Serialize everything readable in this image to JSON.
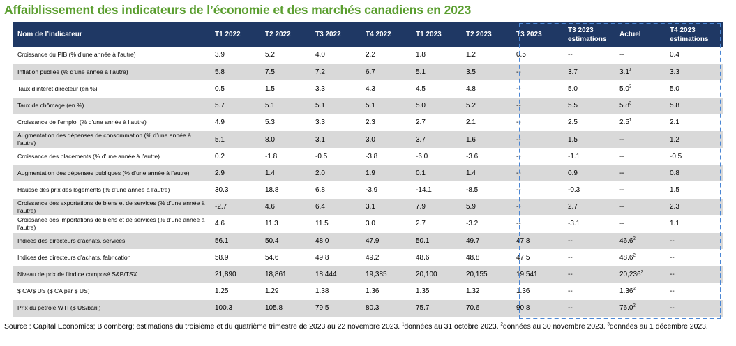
{
  "title": "Affaiblissement des indicateurs de l’économie et des marchés canadiens en 2023",
  "columns": [
    "Nom de l’indicateur",
    "T1 2022",
    "T2 2022",
    "T3 2022",
    "T4 2022",
    "T1 2023",
    "T2 2023",
    "T3 2023",
    "T3 2023 estimations",
    "Actuel",
    "T4 2023 estimations"
  ],
  "rows": [
    {
      "name": "Croissance du PIB (% d’une année à l’autre)",
      "values": [
        "3.9",
        "5.2",
        "4.0",
        "2.2",
        "1.8",
        "1.2",
        "0.5",
        "--",
        "--",
        "0.4"
      ],
      "actuel_note": ""
    },
    {
      "name": "Inflation publiée (% d’une année à l’autre)",
      "values": [
        "5.8",
        "7.5",
        "7.2",
        "6.7",
        "5.1",
        "3.5",
        "--",
        "3.7",
        "3.1",
        "3.3"
      ],
      "actuel_note": "1"
    },
    {
      "name": "Taux d’intérêt directeur (en %)",
      "values": [
        "0.5",
        "1.5",
        "3.3",
        "4.3",
        "4.5",
        "4.8",
        "--",
        "5.0",
        "5.0",
        "5.0"
      ],
      "actuel_note": "2"
    },
    {
      "name": "Taux de chômage (en %)",
      "values": [
        "5.7",
        "5.1",
        "5.1",
        "5.1",
        "5.0",
        "5.2",
        "--",
        "5.5",
        "5.8",
        "5.8"
      ],
      "actuel_note": "3"
    },
    {
      "name": "Croissance de l’emploi (% d’une année à l’autre)",
      "values": [
        "4.9",
        "5.3",
        "3.3",
        "2.3",
        "2.7",
        "2.1",
        "--",
        "2.5",
        "2.5",
        "2.1"
      ],
      "actuel_note": "1"
    },
    {
      "name": "Augmentation des dépenses de consommation (% d’une année à l’autre)",
      "values": [
        "5.1",
        "8.0",
        "3.1",
        "3.0",
        "3.7",
        "1.6",
        "--",
        "1.5",
        "--",
        "1.2"
      ],
      "actuel_note": ""
    },
    {
      "name": "Croissance des placements (% d’une année à l’autre)",
      "values": [
        "0.2",
        "-1.8",
        "-0.5",
        "-3.8",
        "-6.0",
        "-3.6",
        "--",
        "-1.1",
        "--",
        "-0.5"
      ],
      "actuel_note": ""
    },
    {
      "name": "Augmentation des dépenses publiques (% d’une année à l’autre)",
      "values": [
        "2.9",
        "1.4",
        "2.0",
        "1.9",
        "0.1",
        "1.4",
        "--",
        "0.9",
        "--",
        "0.8"
      ],
      "actuel_note": ""
    },
    {
      "name": "Hausse des prix des logements (% d’une année à l’autre)",
      "values": [
        "30.3",
        "18.8",
        "6.8",
        "-3.9",
        "-14.1",
        "-8.5",
        "--",
        "-0.3",
        "--",
        "1.5"
      ],
      "actuel_note": ""
    },
    {
      "name": "Croissance des exportations de biens et de services (% d’une année à l’autre)",
      "values": [
        "-2.7",
        "4.6",
        "6.4",
        "3.1",
        "7.9",
        "5.9",
        "--",
        "2.7",
        "--",
        "2.3"
      ],
      "actuel_note": ""
    },
    {
      "name": "Croissance des importations de biens et de services (% d’une année à l’autre)",
      "values": [
        "4.6",
        "11.3",
        "11.5",
        "3.0",
        "2.7",
        "-3.2",
        "--",
        "-3.1",
        "--",
        "1.1"
      ],
      "actuel_note": ""
    },
    {
      "name": "Indices des directeurs d’achats, services",
      "values": [
        "56.1",
        "50.4",
        "48.0",
        "47.9",
        "50.1",
        "49.7",
        "47.8",
        "--",
        "46.6",
        "--"
      ],
      "actuel_note": "2"
    },
    {
      "name": "Indices des directeurs d’achats, fabrication",
      "values": [
        "58.9",
        "54.6",
        "49.8",
        "49.2",
        "48.6",
        "48.8",
        "47.5",
        "--",
        "48.6",
        "--"
      ],
      "actuel_note": "2"
    },
    {
      "name": "Niveau de prix de l’indice composé S&P/TSX",
      "values": [
        "21,890",
        "18,861",
        "18,444",
        "19,385",
        "20,100",
        "20,155",
        "19,541",
        "--",
        "20,236",
        "--"
      ],
      "actuel_note": "2"
    },
    {
      "name": "$ CA/$ US ($ CA par $ US)",
      "values": [
        "1.25",
        "1.29",
        "1.38",
        "1.36",
        "1.35",
        "1.32",
        "1.36",
        "--",
        "1.36",
        "--"
      ],
      "actuel_note": "2"
    },
    {
      "name": "Prix du pétrole WTI ($ US/baril)",
      "values": [
        "100.3",
        "105.8",
        "79.5",
        "80.3",
        "75.7",
        "70.6",
        "90.8",
        "--",
        "76.0",
        "--"
      ],
      "actuel_note": "2"
    }
  ],
  "source": {
    "text": "Source : Capital Economics; Bloomberg; estimations du troisième et du quatrième trimestre de 2023 au 22 novembre 2023.",
    "note1_mark": "1",
    "note1": "données au 31 octobre 2023.",
    "note2_mark": "2",
    "note2": "données au 30 novembre 2023.",
    "note3_mark": "3",
    "note3": "données au 1 décembre 2023."
  },
  "colors": {
    "title": "#5a9e2f",
    "header_bg": "#1f3864",
    "shade": "#d9d9d9",
    "dashed_box": "#4a86d4"
  }
}
